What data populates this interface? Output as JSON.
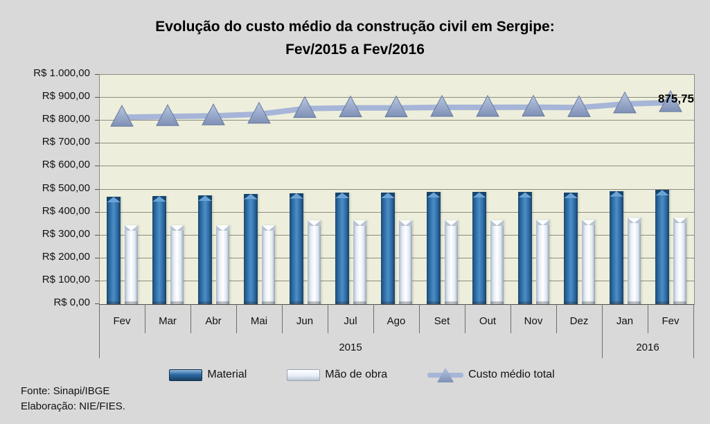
{
  "title": {
    "line1": "Evolução do custo médio da construção civil em Sergipe:",
    "line2": "Fev/2015 a Fev/2016"
  },
  "legend": {
    "material": "Material",
    "mao_de_obra": "Mão de obra",
    "custo_medio_total": "Custo médio total"
  },
  "footer": {
    "source": "Fonte: Sinapi/IBGE",
    "elaboration": "Elaboração: NIE/FIES."
  },
  "colors": {
    "material_bar": "#2D6AA3",
    "mao_de_obra_bar": "#E7EDF6",
    "total_line": "#A6B5D8",
    "total_marker": "#8FA3C7",
    "plot_background": "#EDEFDC",
    "page_background": "#D9D9D9"
  },
  "chart_data": {
    "type": "bar",
    "title": "Evolução do custo médio da construção civil em Sergipe: Fev/2015 a Fev/2016",
    "categories": [
      "Fev",
      "Mar",
      "Abr",
      "Mai",
      "Jun",
      "Jul",
      "Ago",
      "Set",
      "Out",
      "Nov",
      "Dez",
      "Jan",
      "Fev"
    ],
    "year_groups": [
      {
        "label": "2015",
        "start": 0,
        "span": 11
      },
      {
        "label": "2016",
        "start": 11,
        "span": 2
      }
    ],
    "series": [
      {
        "name": "Material",
        "type": "bar",
        "values": [
          468,
          471,
          474,
          481,
          484,
          486,
          486,
          488,
          488,
          488,
          486,
          493,
          497.75
        ]
      },
      {
        "name": "Mão de obra",
        "type": "bar",
        "values": [
          344,
          344,
          344,
          344,
          366,
          367,
          367,
          367,
          367,
          368,
          368,
          377,
          378
        ]
      },
      {
        "name": "Custo médio total",
        "type": "line",
        "values": [
          812,
          815,
          818,
          825,
          850,
          853,
          853,
          855,
          855,
          856,
          854,
          870,
          875.75
        ]
      }
    ],
    "ylim": [
      0,
      1000
    ],
    "ytick_step": 100,
    "yticklabels": [
      "R$ 0,00",
      "R$ 100,00",
      "R$ 200,00",
      "R$ 300,00",
      "R$ 400,00",
      "R$ 500,00",
      "R$ 600,00",
      "R$ 700,00",
      "R$ 800,00",
      "R$ 900,00",
      "R$ 1.000,00"
    ],
    "grid": true,
    "legend_position": "bottom",
    "data_label": {
      "text": "875,75",
      "series": "Custo médio total",
      "index": 12
    }
  }
}
